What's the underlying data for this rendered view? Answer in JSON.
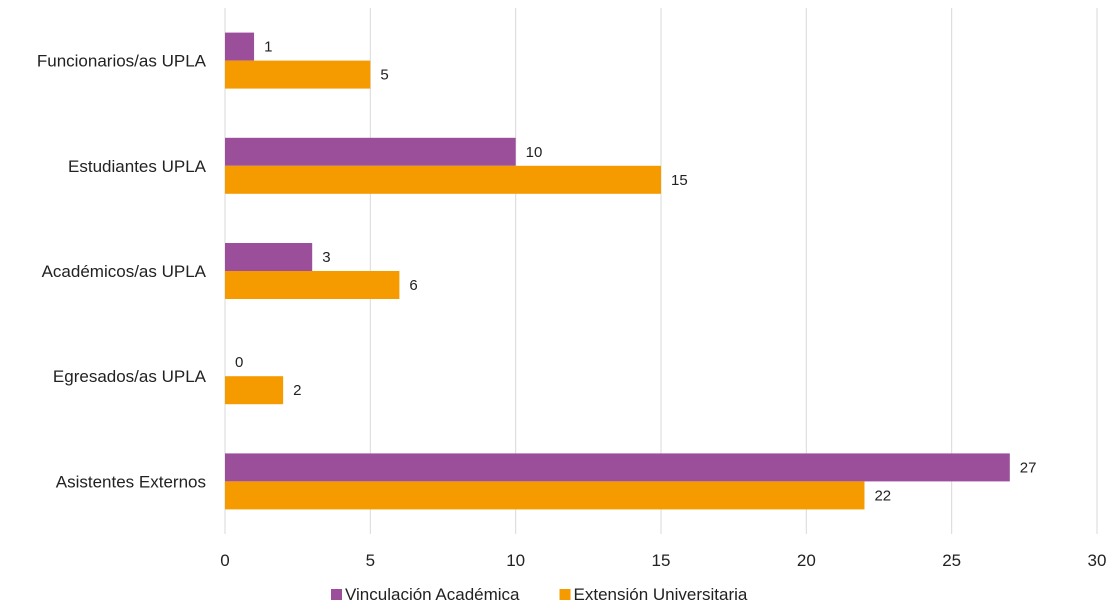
{
  "chart_data": {
    "type": "bar",
    "orientation": "horizontal",
    "categories": [
      "Funcionarios/as UPLA",
      "Estudiantes UPLA",
      "Académicos/as UPLA",
      "Egresados/as UPLA",
      "Asistentes Externos"
    ],
    "series": [
      {
        "name": "Vinculación Académica",
        "color": "#9B4F9B",
        "values": [
          1,
          10,
          3,
          0,
          27
        ]
      },
      {
        "name": "Extensión Universitaria",
        "color": "#F59B00",
        "values": [
          5,
          15,
          6,
          2,
          22
        ]
      }
    ],
    "x_ticks": [
      "0",
      "5",
      "10",
      "15",
      "20",
      "25",
      "30"
    ],
    "xlim": [
      0,
      30
    ],
    "grid": true,
    "data_labels": true,
    "legend_position": "bottom"
  }
}
